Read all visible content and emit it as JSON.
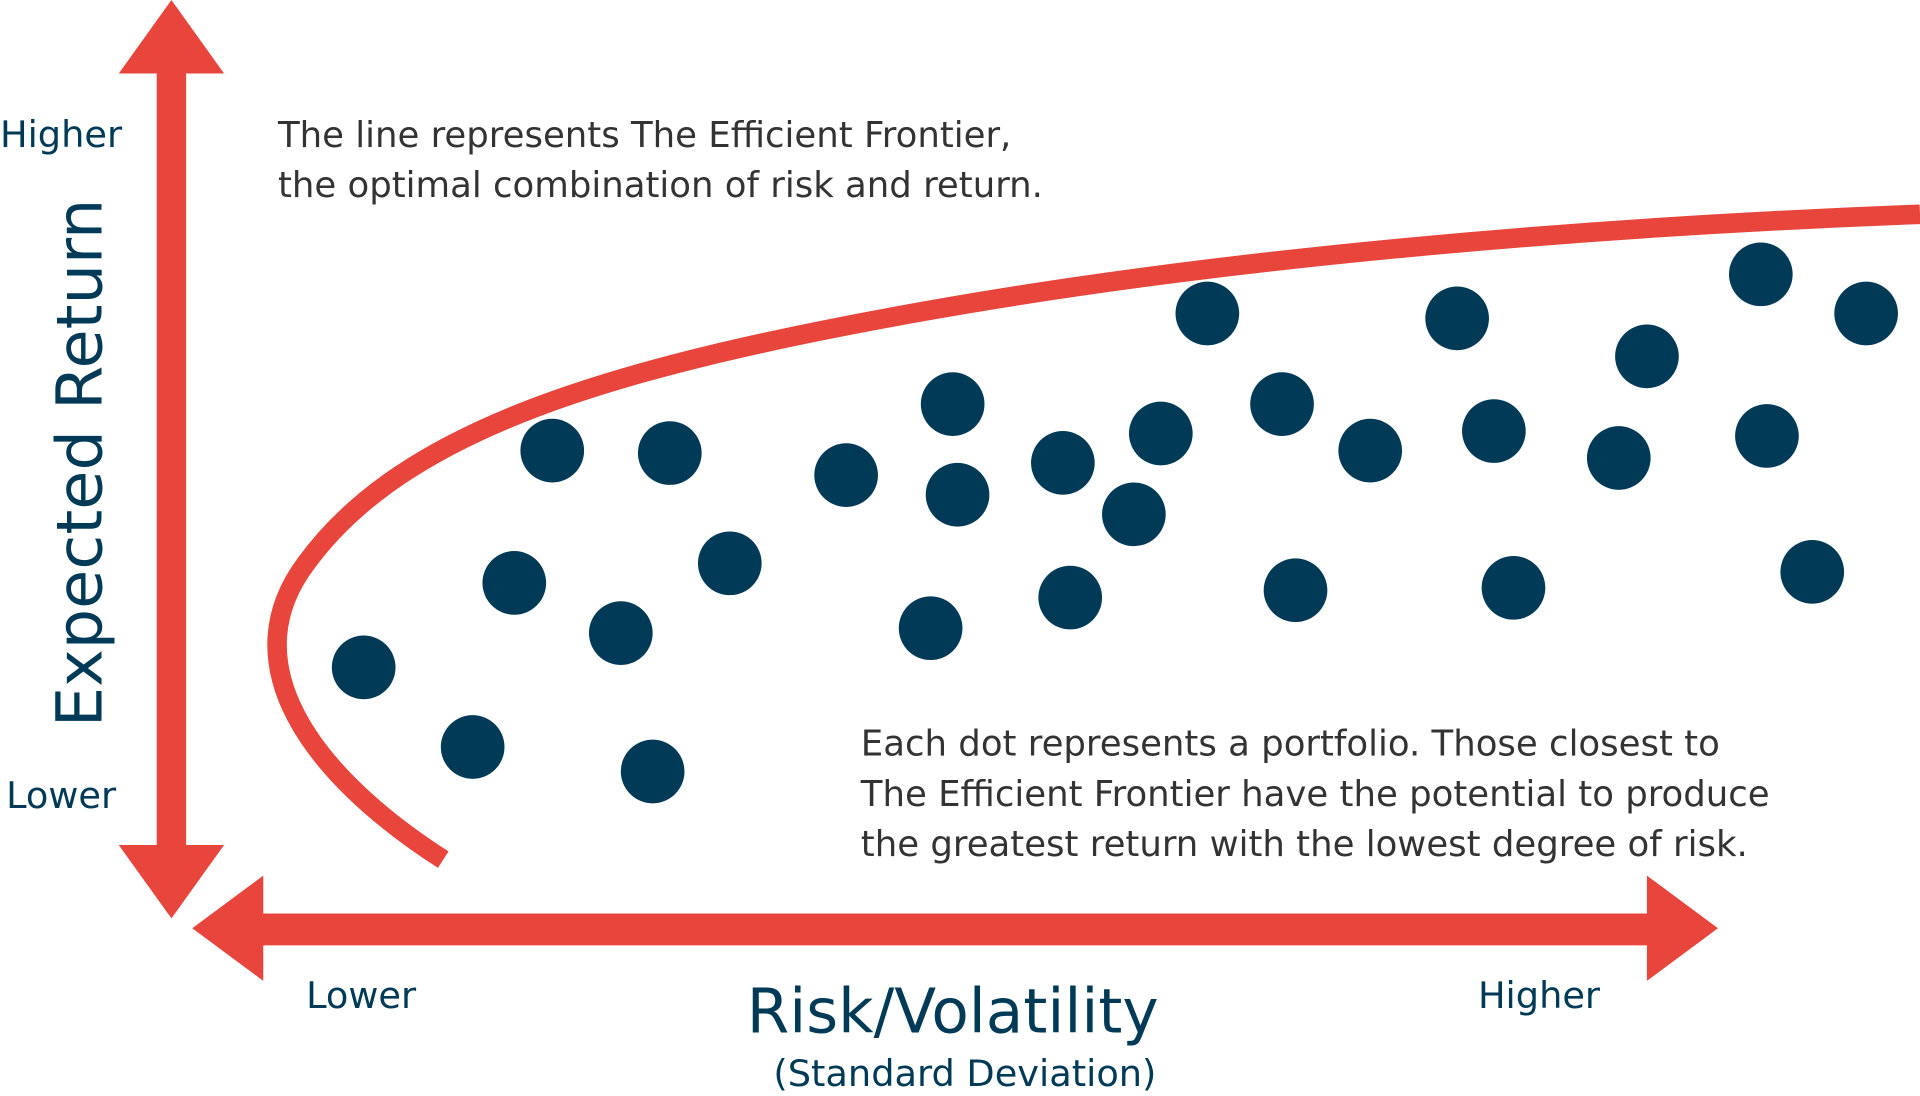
{
  "y_axis": {
    "title": "Expected Return",
    "high": "Higher",
    "low": "Lower"
  },
  "x_axis": {
    "title": "Risk/Volatility",
    "subtitle": "(Standard Deviation)",
    "low": "Lower",
    "high": "Higher"
  },
  "notes": {
    "frontier": [
      "The line represents The Efficient Frontier,",
      "the optimal combination of risk and return."
    ],
    "dots": [
      "Each dot represents a portfolio. Those closest to",
      "The Efficient Frontier have the potential to produce",
      "the greatest return with the lowest degree of risk."
    ]
  }
}
